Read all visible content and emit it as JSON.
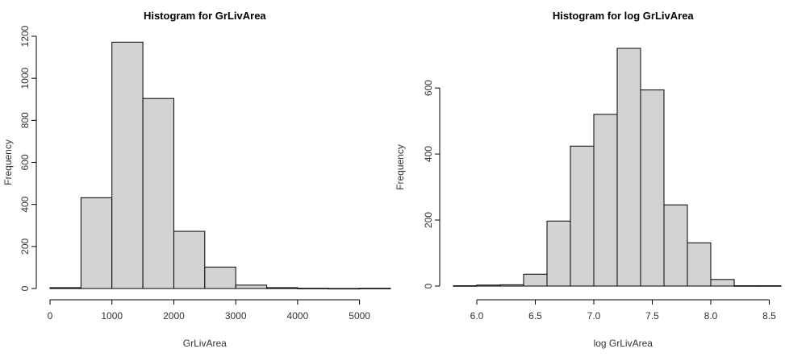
{
  "chart_data": [
    {
      "type": "bar",
      "title": "Histogram for GrLivArea",
      "xlabel": "GrLivArea",
      "ylabel": "Frequency",
      "bin_edges": [
        0,
        500,
        1000,
        1500,
        2000,
        2500,
        3000,
        3500,
        4000,
        4500,
        5000,
        5500
      ],
      "values": [
        4,
        432,
        1172,
        904,
        272,
        102,
        16,
        4,
        1,
        0,
        1
      ],
      "xticks": [
        0,
        1000,
        2000,
        3000,
        4000,
        5000
      ],
      "xtick_labels": [
        "0",
        "1000",
        "2000",
        "3000",
        "4000",
        "5000"
      ],
      "yticks": [
        0,
        200,
        400,
        600,
        800,
        1000,
        1200
      ],
      "ytick_labels": [
        "0",
        "200",
        "400",
        "600",
        "800",
        "1000",
        "1200"
      ],
      "xlim": [
        0,
        5500
      ],
      "ylim": [
        0,
        1200
      ],
      "grid": false
    },
    {
      "type": "bar",
      "title": "Histogram for log GrLivArea",
      "xlabel": "log GrLivArea",
      "ylabel": "Frequency",
      "bin_edges": [
        5.8,
        6.0,
        6.2,
        6.4,
        6.6,
        6.8,
        7.0,
        7.2,
        7.4,
        7.6,
        7.8,
        8.0,
        8.2,
        8.4,
        8.6
      ],
      "values": [
        1,
        3,
        4,
        36,
        197,
        424,
        520,
        720,
        594,
        246,
        131,
        20,
        1,
        1
      ],
      "xticks": [
        6.0,
        6.5,
        7.0,
        7.5,
        8.0,
        8.5
      ],
      "xtick_labels": [
        "6.0",
        "6.5",
        "7.0",
        "7.5",
        "8.0",
        "8.5"
      ],
      "yticks": [
        0,
        200,
        400,
        600
      ],
      "ytick_labels": [
        "0",
        "200",
        "400",
        "600"
      ],
      "xlim": [
        5.8,
        8.6
      ],
      "ylim": [
        0,
        720
      ],
      "grid": false
    }
  ]
}
